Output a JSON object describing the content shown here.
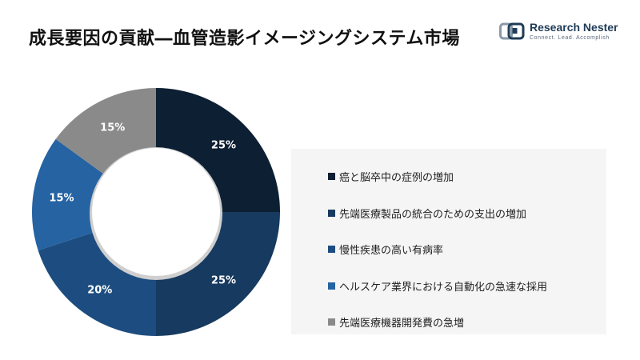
{
  "header": {
    "title": "成長要因の貢献―血管造影イメージングシステム市場",
    "logo_name": "Research Nester",
    "logo_tagline": "Connect. Lead. Accomplish"
  },
  "colors": {
    "navy": "#0d1f33",
    "dark_blue": "#173a60",
    "mid_blue": "#1d4d80",
    "blue": "#2563a3",
    "gray": "#8a8a8a",
    "legend_bg": "#f5f5f5"
  },
  "chart_data": {
    "type": "pie",
    "donut": true,
    "categories": [
      "癌と脳卒中の症例の増加",
      "先端医療製品の統合のための支出の増加",
      "慢性疾患の高い有病率",
      "ヘルスケア業界における自動化の急速な採用",
      "先端医療機器開発費の急増"
    ],
    "values": [
      25,
      25,
      20,
      15,
      15
    ],
    "labels": [
      "25%",
      "25%",
      "20%",
      "15%",
      "15%"
    ],
    "colors": [
      "#0d1f33",
      "#173a60",
      "#1d4d80",
      "#2563a3",
      "#8a8a8a"
    ],
    "legend_position": "right"
  }
}
